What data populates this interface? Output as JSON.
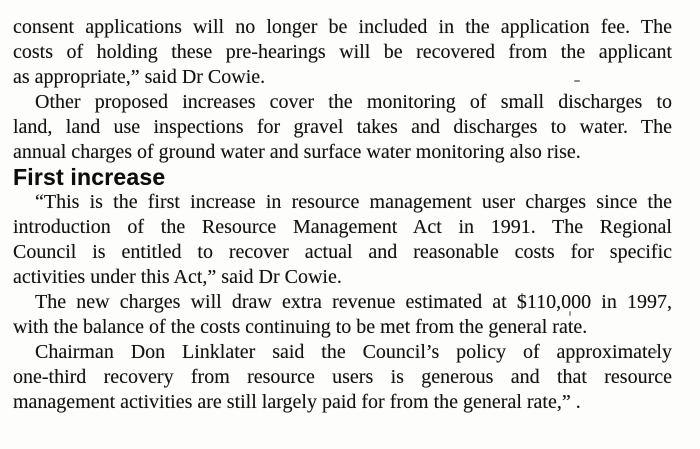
{
  "page": {
    "background_color": "#fdfdfc",
    "text_color": "#131313"
  },
  "article": {
    "heading": "First increase",
    "paragraphs": [
      {
        "lines": [
          "consent applications will no longer be included in the application fee. The",
          "costs of holding these pre-hearings will be recovered from the applicant",
          "as appropriate,” said Dr Cowie."
        ]
      },
      {
        "lines": [
          "Other proposed increases cover the monitoring of small discharges to",
          "land, land use inspections for gravel takes and discharges to water. The",
          "annual charges of ground water and surface water monitoring also rise."
        ]
      },
      {
        "lines": [
          "“This is the first increase in resource management user charges since the",
          "introduction of the Resource Management Act in 1991. The Regional",
          "Council is entitled to recover actual and reasonable costs for specific",
          "activities under this Act,” said Dr Cowie."
        ]
      },
      {
        "lines": [
          "The new charges will draw extra revenue estimated at $110,000 in 1997,",
          "with the balance of the costs continuing to be met from the general rate."
        ]
      },
      {
        "lines": [
          "Chairman Don Linklater said the Council’s policy of approximately",
          "one-third recovery from resource users is generous and that resource",
          "management activities are still largely paid for from the general rate,” ."
        ]
      }
    ]
  }
}
